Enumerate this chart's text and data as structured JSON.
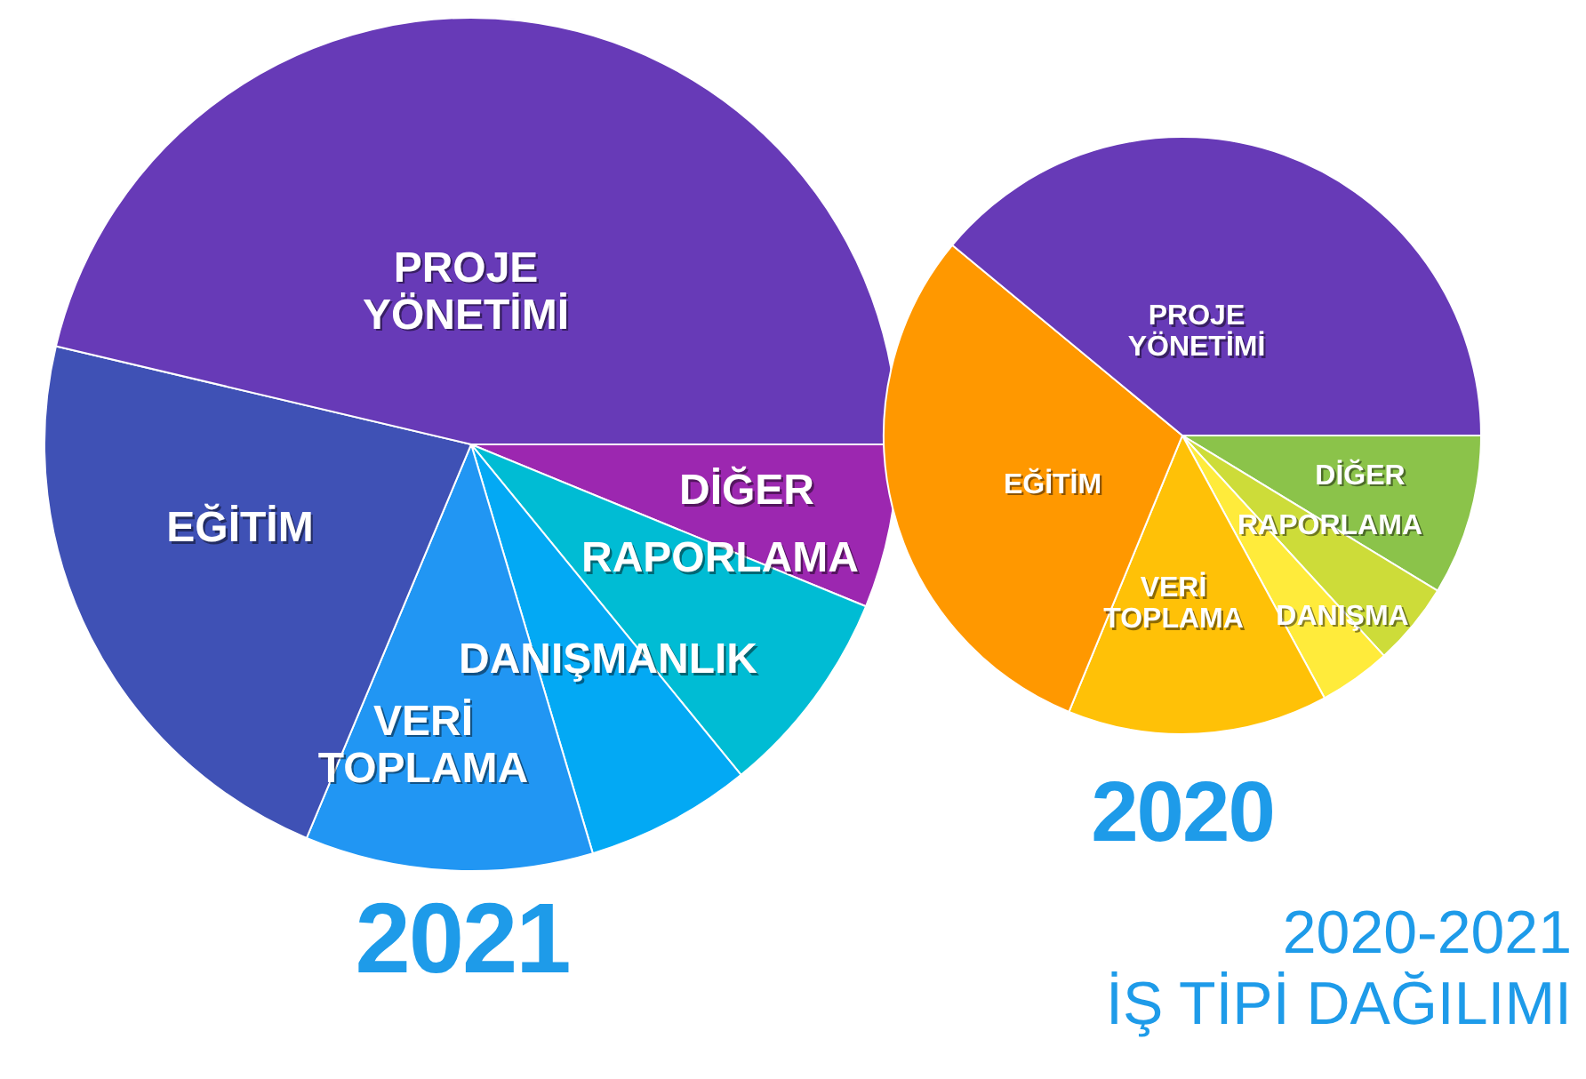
{
  "chart_data": [
    {
      "type": "pie",
      "title": "2021",
      "categories": [
        "DİĞER",
        "RAPORLAMA",
        "DANIŞMANLIK",
        "VERİ TOPLAMA",
        "EĞİTİM",
        "PROJE YÖNETİMİ"
      ],
      "values": [
        6.2,
        7.9,
        6.3,
        10.9,
        22.4,
        46.3
      ],
      "colors": [
        "#9c27b0",
        "#00bcd4",
        "#03a9f4",
        "#2196f3",
        "#3f51b5",
        "#673ab7"
      ],
      "legend": false
    },
    {
      "type": "pie",
      "title": "2020",
      "categories": [
        "DİĞER",
        "RAPORLAMA",
        "DANIŞMA",
        "VERİ TOPLAMA",
        "EĞİTİM",
        "PROJE YÖNETİMİ"
      ],
      "values": [
        8.7,
        4.5,
        3.9,
        14.1,
        29.8,
        39.0
      ],
      "colors": [
        "#8bc34a",
        "#cddc39",
        "#ffeb3b",
        "#ffc107",
        "#ff9800",
        "#673ab7"
      ],
      "legend": false,
      "annotations": [
        "2020-2021",
        "İŞ TİPİ DAĞILIMI"
      ]
    }
  ]
}
